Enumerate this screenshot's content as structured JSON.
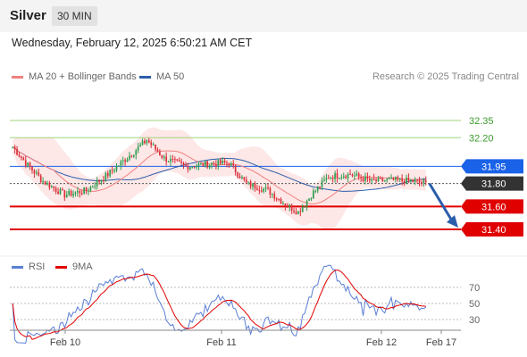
{
  "header": {
    "symbol": "Silver",
    "timeframe": "30 MIN",
    "datetime": "Wednesday, February 12, 2025 6:50:21 AM CET"
  },
  "legend": {
    "ma20_label": "MA 20 + Bollinger Bands",
    "ma50_label": "MA 50",
    "copyright": "Research © 2025 Trading Central"
  },
  "rsi_legend": {
    "rsi_label": "RSI",
    "ma9_label": "9MA"
  },
  "colors": {
    "up": "#2e9e4f",
    "down": "#d9303a",
    "ma20": "#f08080",
    "band": "#fde4e4",
    "ma50": "#2b5dab",
    "level_blue": "#1a62e8",
    "level_red": "#e00000",
    "level_dark": "#333333",
    "support_green": "#9ed67a",
    "rsi_line": "#5b7fd6",
    "rsi_ma": "#e00000"
  },
  "chart_data": {
    "type": "candlestick",
    "x_tick_labels": [
      "Feb 10",
      "Feb 11",
      "Feb 12",
      "Feb 17"
    ],
    "ylim": [
      31.2,
      32.6
    ],
    "price_levels": [
      {
        "value": 32.35,
        "label": "32.35",
        "style": "green-line"
      },
      {
        "value": 32.2,
        "label": "32.20",
        "style": "green-line"
      },
      {
        "value": 31.95,
        "label": "31.95",
        "style": "blue-tag"
      },
      {
        "value": 31.8,
        "label": "31.80",
        "style": "last-price-tag"
      },
      {
        "value": 31.6,
        "label": "31.60",
        "style": "red-tag"
      },
      {
        "value": 31.4,
        "label": "31.40",
        "style": "red-tag"
      }
    ],
    "forecast_arrow": {
      "from": 31.8,
      "to": 31.4
    },
    "rsi": {
      "levels": [
        70,
        50,
        30
      ],
      "ylim": [
        20,
        80
      ]
    }
  }
}
